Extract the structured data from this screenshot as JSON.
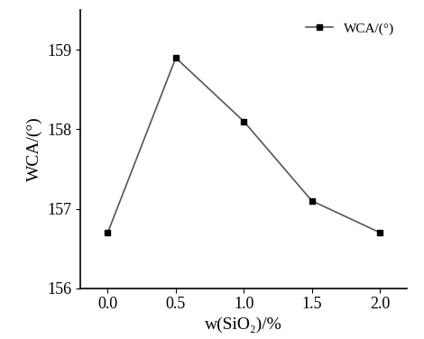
{
  "chart_data": {
    "type": "line",
    "x_label": "w(SiO₂)/%",
    "y_label": "WCA/(°)",
    "x": [
      0.0,
      0.5,
      1.0,
      1.5,
      2.0
    ],
    "series": [
      {
        "name": "WCA/(°)",
        "color": "#555555",
        "marker": "square",
        "line_style": "solid",
        "values": [
          156.7,
          158.9,
          158.1,
          157.1,
          156.7
        ]
      }
    ],
    "xlim": [
      -0.2,
      2.2
    ],
    "xticks": [
      0.0,
      0.5,
      1.0,
      1.5,
      2.0
    ],
    "ylim": [
      156,
      159.5
    ],
    "yticks": [
      156,
      157,
      158,
      159
    ],
    "legend": "upper right",
    "grid": false
  }
}
